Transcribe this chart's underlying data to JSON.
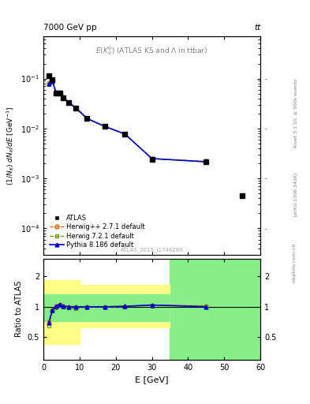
{
  "title_top": "7000 GeV pp",
  "title_top_right": "tt",
  "plot_title": "E(K$_S^0$) (ATLAS KS and $\\Lambda$ in ttbar)",
  "watermark": "ATLAS_2019_I1746286",
  "xlabel": "E [GeV]",
  "ylabel": "$(1/N_K)$ $dN_K/dE$ $[\\mathrm{GeV}^{-1}]$",
  "ylabel_ratio": "Ratio to ATLAS",
  "atlas_x": [
    1.5,
    2.5,
    3.5,
    4.5,
    5.5,
    7.0,
    9.0,
    12.0,
    17.0,
    22.5,
    30.0,
    45.0,
    55.0
  ],
  "atlas_y": [
    0.115,
    0.095,
    0.052,
    0.051,
    0.041,
    0.033,
    0.026,
    0.016,
    0.011,
    0.0077,
    0.0024,
    0.00215,
    0.00045
  ],
  "herwig_pp_x": [
    1.5,
    2.5,
    3.5,
    4.5,
    5.5,
    7.0,
    9.0,
    12.0,
    17.0,
    22.5,
    30.0,
    45.0
  ],
  "herwig_pp_y": [
    0.082,
    0.088,
    0.053,
    0.054,
    0.042,
    0.033,
    0.026,
    0.016,
    0.011,
    0.0078,
    0.0025,
    0.0022
  ],
  "herwig7_x": [
    1.5,
    2.5,
    3.5,
    4.5,
    5.5,
    7.0,
    9.0,
    12.0,
    17.0,
    22.5,
    30.0,
    45.0
  ],
  "herwig7_y": [
    0.075,
    0.086,
    0.051,
    0.053,
    0.041,
    0.032,
    0.025,
    0.0158,
    0.0109,
    0.0077,
    0.0025,
    0.00218
  ],
  "pythia_x": [
    1.5,
    2.5,
    3.5,
    4.5,
    5.5,
    7.0,
    9.0,
    12.0,
    17.0,
    22.5,
    30.0,
    45.0
  ],
  "pythia_y": [
    0.08,
    0.088,
    0.053,
    0.054,
    0.042,
    0.033,
    0.026,
    0.016,
    0.011,
    0.0078,
    0.0025,
    0.00215
  ],
  "ratio_x": [
    1.5,
    2.5,
    3.5,
    4.5,
    5.5,
    7.0,
    9.0,
    12.0,
    17.0,
    22.5,
    30.0,
    45.0
  ],
  "ratio_herwig_pp": [
    0.71,
    0.93,
    1.02,
    1.06,
    1.02,
    1.0,
    1.0,
    1.0,
    1.0,
    1.01,
    1.04,
    1.02
  ],
  "ratio_herwig7": [
    0.65,
    0.91,
    0.98,
    1.04,
    1.0,
    0.97,
    0.96,
    0.99,
    0.99,
    1.0,
    1.04,
    1.01
  ],
  "ratio_pythia": [
    0.7,
    0.93,
    1.02,
    1.06,
    1.02,
    1.0,
    1.0,
    1.0,
    1.0,
    1.01,
    1.04,
    1.0
  ],
  "color_herwig_pp": "#cc6600",
  "color_herwig7": "#669900",
  "color_pythia": "#0000cc",
  "color_atlas": "#000000",
  "xlim": [
    0,
    60
  ],
  "ylim_main": [
    3e-05,
    0.7
  ],
  "ylim_ratio": [
    0.3,
    3.0
  ]
}
